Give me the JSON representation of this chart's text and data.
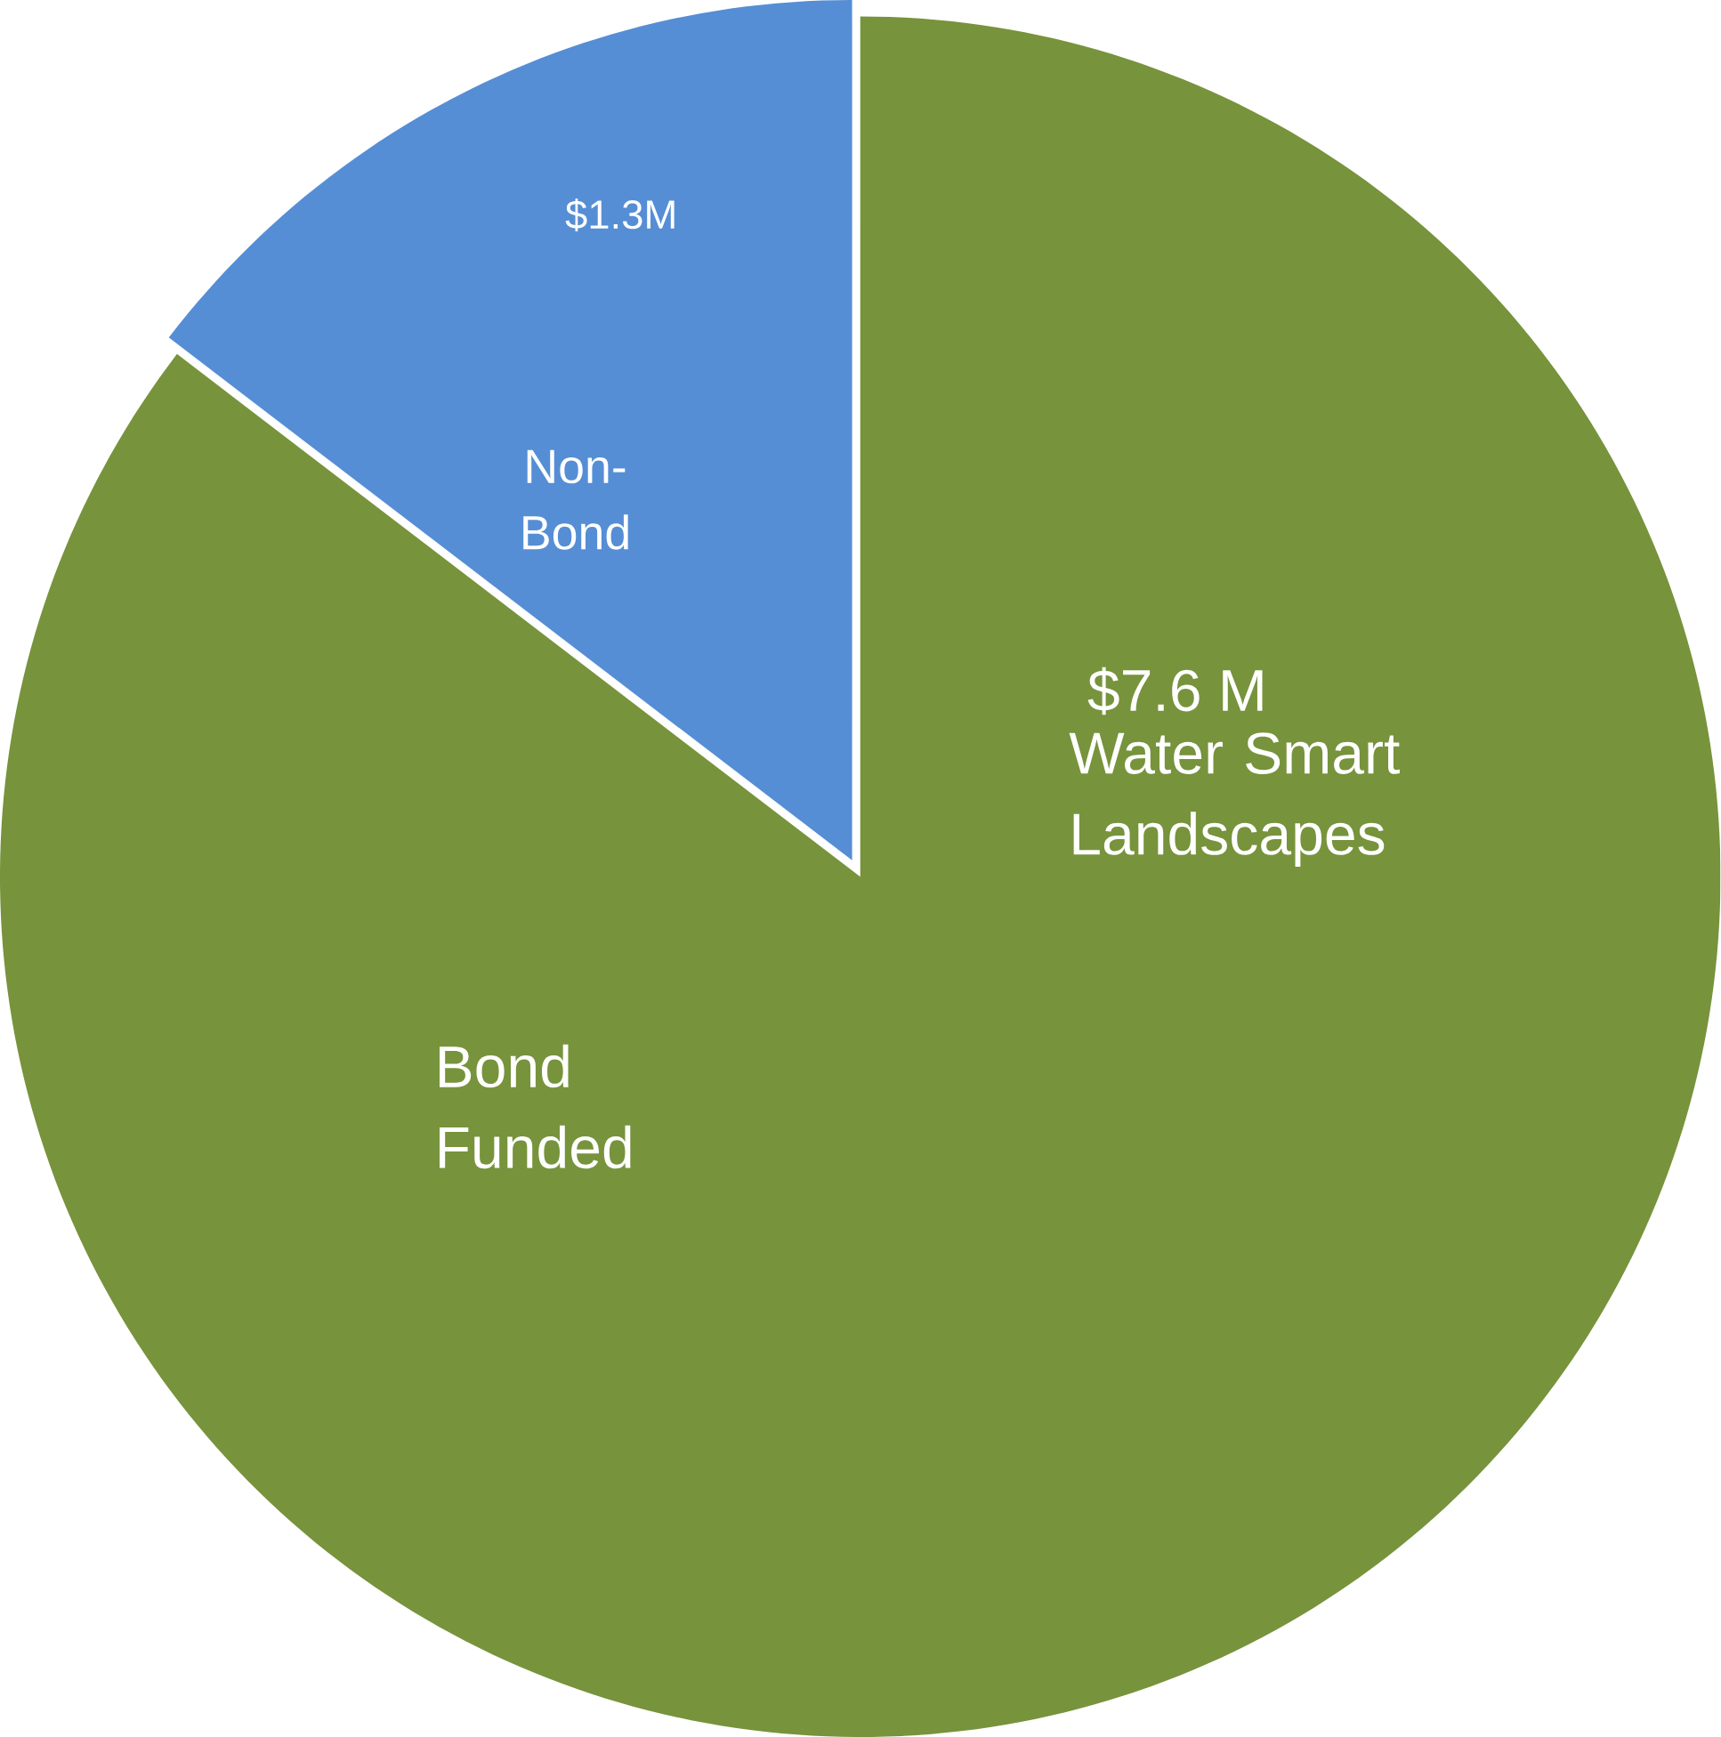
{
  "chart_data": {
    "type": "pie",
    "categories": [
      "Non-Bond",
      "Bond Funded"
    ],
    "values": [
      1.3,
      7.6
    ],
    "colors": [
      "#558ed5",
      "#77933c"
    ],
    "value_labels": [
      "$1.3M",
      "$7.6 M"
    ],
    "annotations": [
      "Water Smart Landscapes"
    ]
  }
}
